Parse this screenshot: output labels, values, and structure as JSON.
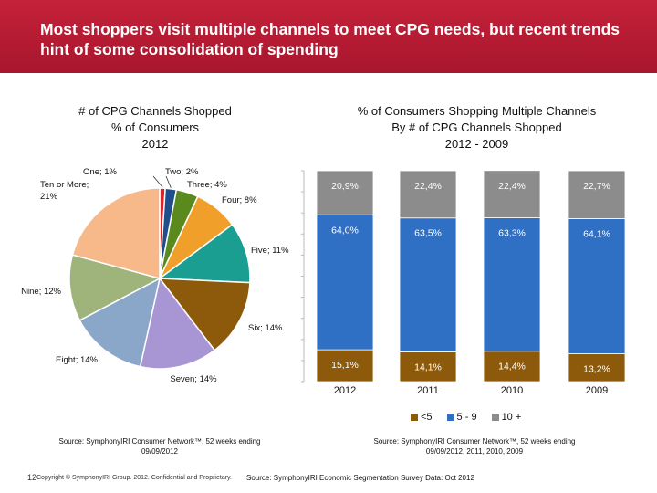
{
  "header": {
    "title": "Most shoppers visit multiple channels to meet CPG needs, but recent trends hint of some consolidation of spending"
  },
  "chart_data": [
    {
      "type": "pie",
      "title_lines": [
        "# of CPG Channels Shopped",
        "% of Consumers",
        "2012"
      ],
      "slices": [
        {
          "label": "One; 1%",
          "value": 1,
          "color": "#d8262e"
        },
        {
          "label": "Two; 2%",
          "value": 2,
          "color": "#1f4e8c"
        },
        {
          "label": "Three; 4%",
          "value": 4,
          "color": "#5a8a1e"
        },
        {
          "label": "Four; 8%",
          "value": 8,
          "color": "#f0a02a"
        },
        {
          "label": "Five; 11%",
          "value": 11,
          "color": "#1a9e92"
        },
        {
          "label": "Six; 14%",
          "value": 14,
          "color": "#8c5a0a"
        },
        {
          "label": "Seven; 14%",
          "value": 14,
          "color": "#a896d4"
        },
        {
          "label": "Eight; 14%",
          "value": 14,
          "color": "#8aa6c8"
        },
        {
          "label": "Nine; 12%",
          "value": 12,
          "color": "#9fb47a"
        },
        {
          "label": "Ten or More; 21%",
          "value": 21,
          "color": "#f7b88a"
        }
      ],
      "source": "Source: SymphonyIRI Consumer Network™, 52 weeks ending 09/09/2012"
    },
    {
      "type": "bar",
      "stacked": true,
      "title_lines": [
        "% of Consumers Shopping Multiple Channels",
        "By # of CPG Channels Shopped",
        "2012 - 2009"
      ],
      "categories": [
        "2012",
        "2011",
        "2010",
        "2009"
      ],
      "series": [
        {
          "name": "<5",
          "values": [
            15.1,
            14.1,
            14.4,
            13.2
          ],
          "labels": [
            "15,1%",
            "14,1%",
            "14,4%",
            "13,2%"
          ],
          "color": "#8c5a0a"
        },
        {
          "name": "5 - 9",
          "values": [
            64.0,
            63.5,
            63.3,
            64.1
          ],
          "labels": [
            "64,0%",
            "63,5%",
            "63,3%",
            "64,1%"
          ],
          "color": "#2f6fc4"
        },
        {
          "name": "10 +",
          "values": [
            20.9,
            22.4,
            22.4,
            22.7
          ],
          "labels": [
            "20,9%",
            "22,4%",
            "22,4%",
            "22,7%"
          ],
          "color": "#8c8c8c"
        }
      ],
      "ylim": [
        0,
        100
      ],
      "source": "Source: SymphonyIRI Consumer Network™, 52 weeks ending 09/09/2012, 2011, 2010, 2009"
    }
  ],
  "footer": {
    "page": "12",
    "copyright": "Copyright © SymphonyIRI Group. 2012. Confidential and Proprietary.",
    "survey_source": "Source: SymphonyIRI Economic Segmentation Survey Data: Oct 2012"
  }
}
